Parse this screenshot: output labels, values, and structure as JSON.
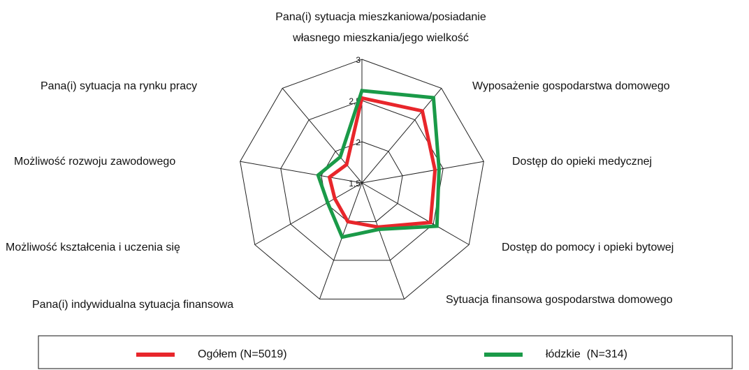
{
  "chart_data": {
    "type": "radar",
    "categories": [
      "Pana(i) sytuacja mieszkaniowa/posiadanie własnego mieszkania/jego wielkość",
      "Wyposażenie gospodarstwa domowego",
      "Dostęp do opieki medycznej",
      "Dostęp do pomocy i opieki bytowej",
      "Sytuacja finansowa gospodarstwa domowego",
      "Pana(i) indywidualna sytuacja finansowa",
      "Możliwość kształcenia i uczenia się",
      "Możliwość rozwoju zawodowego",
      "Pana(i) sytuacja na rynku pracy"
    ],
    "series": [
      {
        "name": "Ogółem (N=5019)",
        "color": "#e8262b",
        "values": [
          2.53,
          2.64,
          2.4,
          2.46,
          2.07,
          2.0,
          1.88,
          1.9,
          1.79
        ]
      },
      {
        "name": "łódzkie  (N=314)",
        "color": "#1a9a48",
        "values": [
          2.62,
          2.85,
          2.45,
          2.55,
          2.1,
          2.2,
          1.98,
          2.04,
          1.91
        ]
      }
    ],
    "ylim": [
      1.5,
      3
    ],
    "yticks": [
      {
        "value": 1.5,
        "label": "1,5"
      },
      2,
      {
        "value": 2.5,
        "label": "2,5"
      },
      3
    ],
    "grid": true,
    "legend": "bottom"
  }
}
